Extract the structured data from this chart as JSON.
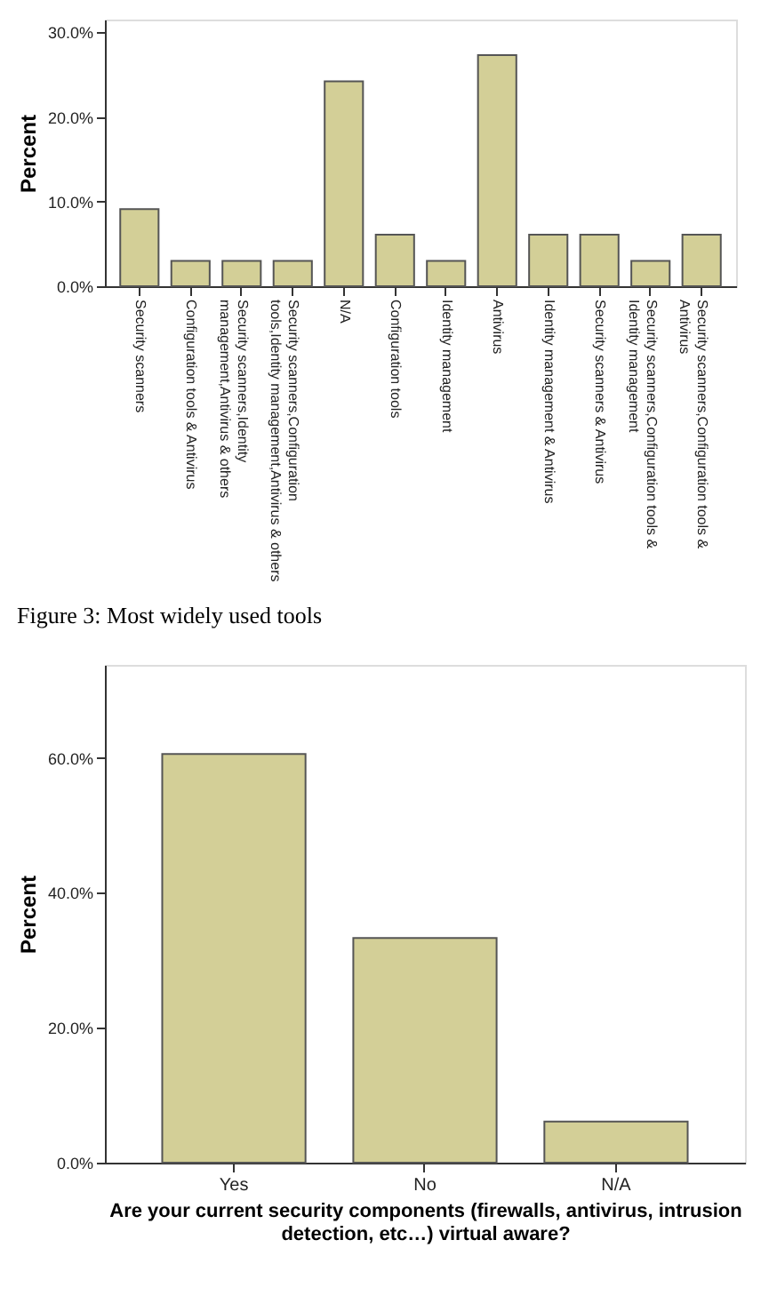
{
  "chart_data": [
    {
      "type": "bar",
      "ylabel": "Percent",
      "categories": [
        "Security scanners",
        "Configuration tools & Antivirus",
        "Security scanners,Identity management,Antivirus & others",
        "Security scanners,Configuration tools,Identity management,Antivirus & others",
        "N/A",
        "Configuration tools",
        "Identity management",
        "Antivirus",
        "Identity management & Antivirus",
        "Security scanners & Antivirus",
        "Security scanners,Configuration tools & Identity management",
        "Security scanners,Configuration tools & Antivirus"
      ],
      "values": [
        9.1,
        3.0,
        3.0,
        3.0,
        24.2,
        6.1,
        3.0,
        27.3,
        6.1,
        6.1,
        3.0,
        6.1
      ],
      "color": "#d3cf97",
      "ylim": [
        0,
        31.5
      ],
      "yticks": [
        {
          "value": 0,
          "label": "0.0%"
        },
        {
          "value": 10,
          "label": "10.0%"
        },
        {
          "value": 20,
          "label": "20.0%"
        },
        {
          "value": 30,
          "label": "30.0%"
        }
      ],
      "grid": false,
      "annotations": [
        "Figure 3: Most widely used tools"
      ]
    },
    {
      "type": "bar",
      "ylabel": "Percent",
      "xlabel": "Are your current security components (firewalls, antivirus, intrusion detection, etc…) virtual aware?",
      "categories": [
        "Yes",
        "No",
        "N/A"
      ],
      "values": [
        60.6,
        33.3,
        6.1
      ],
      "color": "#d3cf97",
      "ylim": [
        0,
        73.8
      ],
      "yticks": [
        {
          "value": 0,
          "label": "0.0%"
        },
        {
          "value": 20,
          "label": "20.0%"
        },
        {
          "value": 40,
          "label": "40.0%"
        },
        {
          "value": 60,
          "label": "60.0%"
        }
      ],
      "grid": false
    }
  ]
}
